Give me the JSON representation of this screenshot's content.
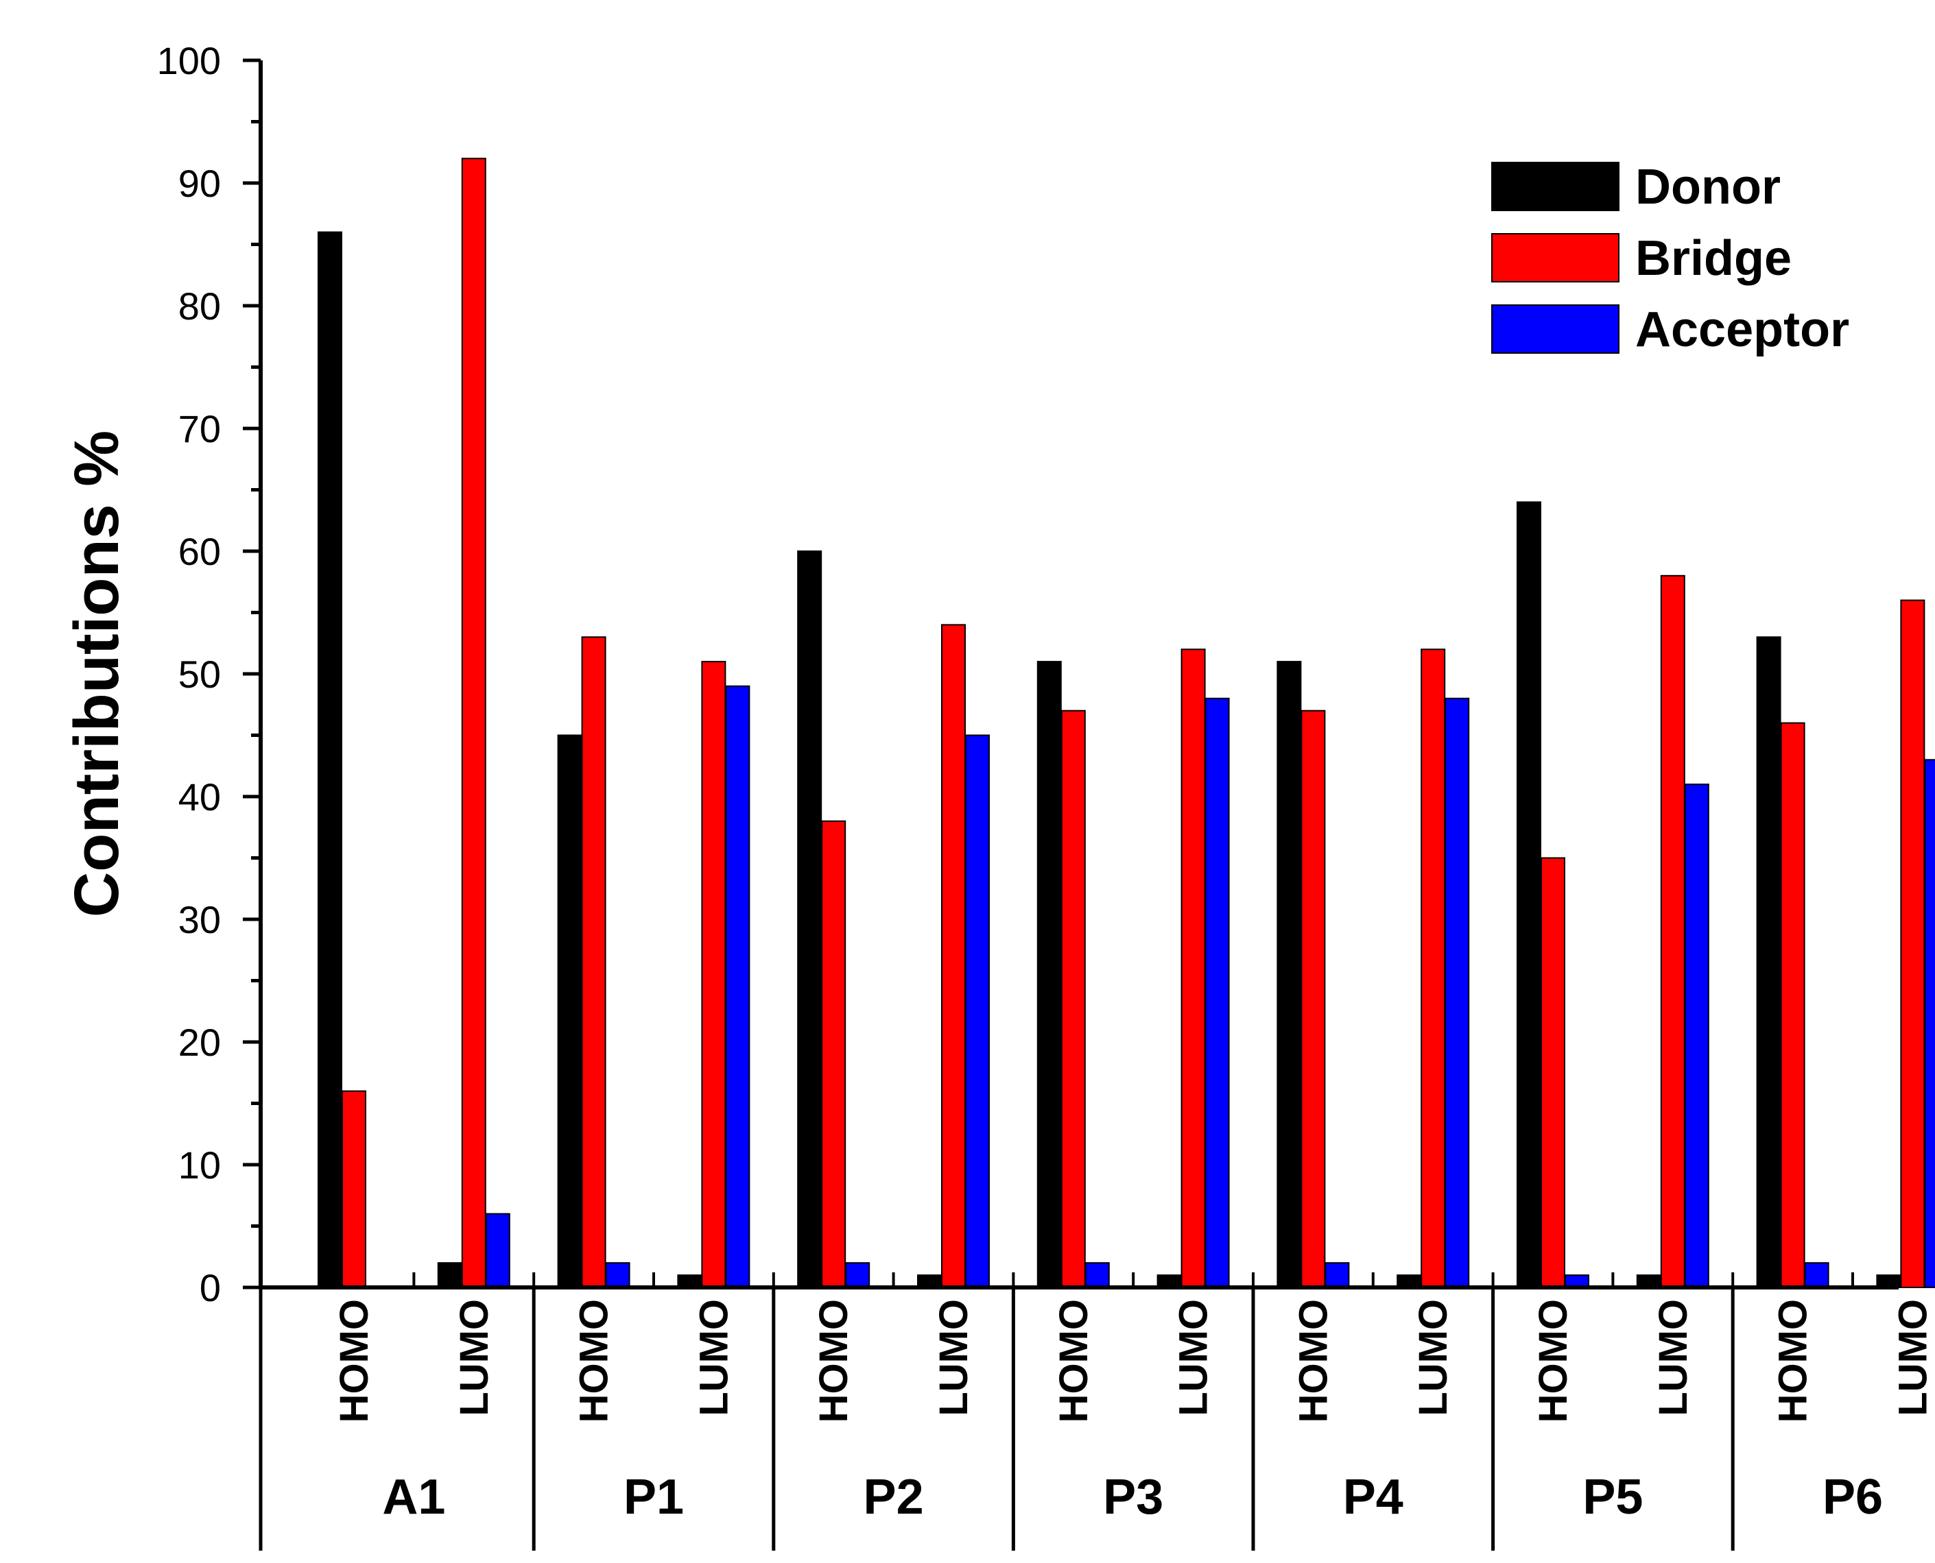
{
  "chart_data": {
    "type": "bar",
    "title": "",
    "xlabel": "",
    "ylabel": "Contributions %",
    "ylim": [
      0,
      100
    ],
    "yticks": [
      0,
      10,
      20,
      30,
      40,
      50,
      60,
      70,
      80,
      90,
      100
    ],
    "legend_position": "top-right",
    "groups": [
      "A1",
      "P1",
      "P2",
      "P3",
      "P4",
      "P5",
      "P6"
    ],
    "orbitals": [
      "HOMO",
      "LUMO"
    ],
    "series": [
      {
        "name": "Donor",
        "color": "#000000",
        "values": [
          86,
          2,
          45,
          1,
          60,
          1,
          51,
          1,
          51,
          1,
          64,
          1,
          53,
          1
        ]
      },
      {
        "name": "Bridge",
        "color": "#ff0000",
        "values": [
          16,
          92,
          53,
          51,
          38,
          54,
          47,
          52,
          47,
          52,
          35,
          58,
          46,
          56
        ]
      },
      {
        "name": "Acceptor",
        "color": "#0000ff",
        "values": [
          0,
          6,
          2,
          49,
          2,
          45,
          2,
          48,
          2,
          48,
          1,
          41,
          2,
          43
        ]
      }
    ]
  }
}
